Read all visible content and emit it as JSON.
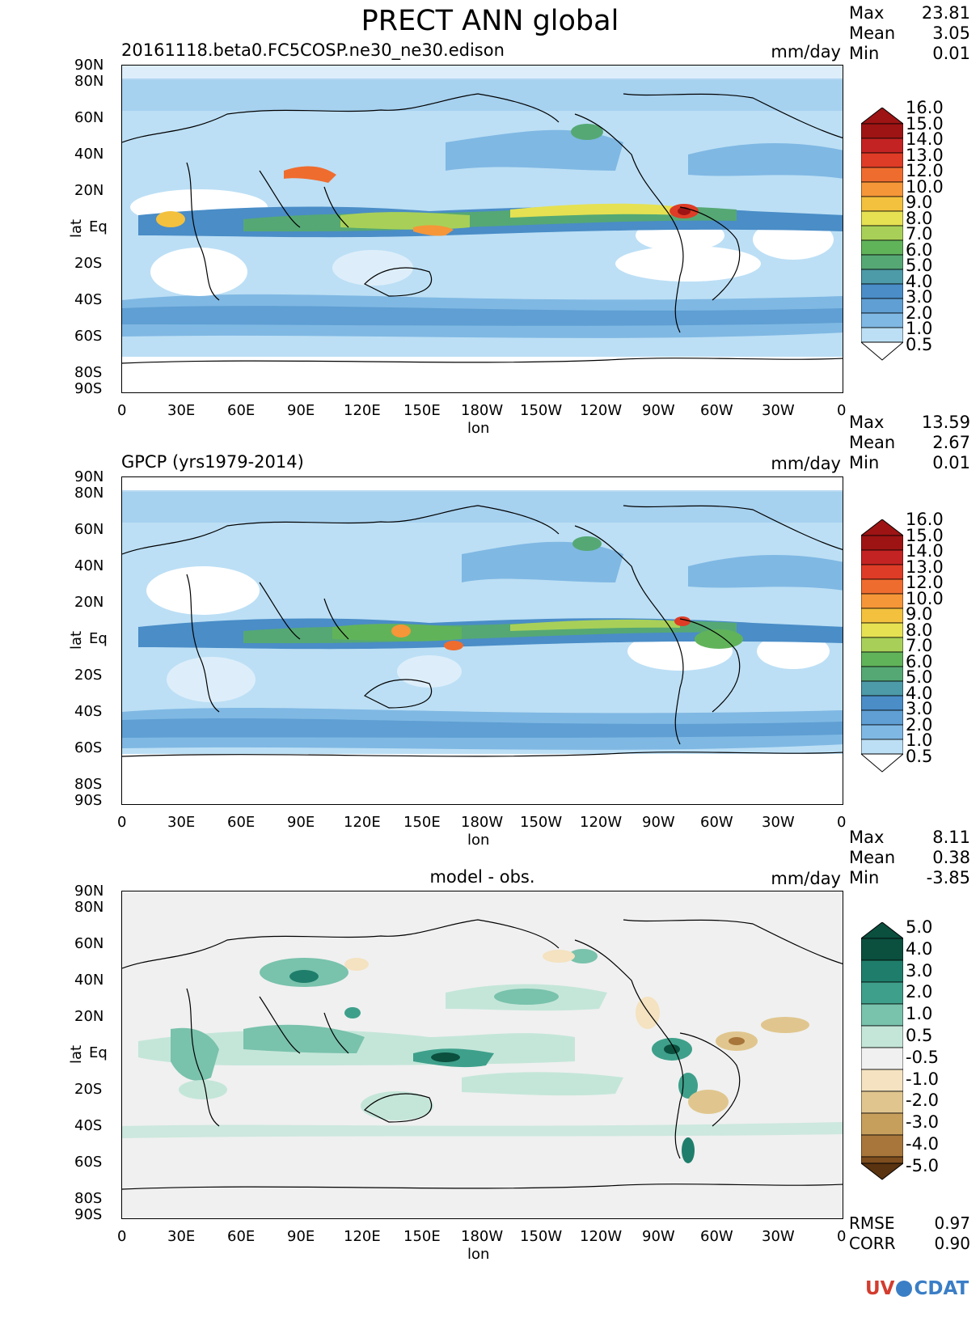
{
  "title": "PRECT ANN global",
  "panels": [
    {
      "subtitle_left": "20161118.beta0.FC5COSP.ne30_ne30.edison",
      "subtitle_right": "mm/day",
      "stats": {
        "Max": "23.81",
        "Mean": "3.05",
        "Min": "0.01"
      },
      "cbar_labels": [
        "16.0",
        "15.0",
        "14.0",
        "13.0",
        "12.0",
        "10.0",
        "9.0",
        "8.0",
        "7.0",
        "6.0",
        "5.0",
        "4.0",
        "3.0",
        "2.0",
        "1.0",
        "0.5"
      ]
    },
    {
      "subtitle_left": "GPCP (yrs1979-2014)",
      "subtitle_right": "mm/day",
      "stats": {
        "Max": "13.59",
        "Mean": "2.67",
        "Min": "0.01"
      },
      "cbar_labels": [
        "16.0",
        "15.0",
        "14.0",
        "13.0",
        "12.0",
        "10.0",
        "9.0",
        "8.0",
        "7.0",
        "6.0",
        "5.0",
        "4.0",
        "3.0",
        "2.0",
        "1.0",
        "0.5"
      ]
    },
    {
      "subtitle_center": "model - obs.",
      "subtitle_right": "mm/day",
      "stats": {
        "Max": "8.11",
        "Mean": "0.38",
        "Min": "-3.85"
      },
      "cbar_labels": [
        "5.0",
        "4.0",
        "3.0",
        "2.0",
        "1.0",
        "0.5",
        "-0.5",
        "-1.0",
        "-2.0",
        "-3.0",
        "-4.0",
        "-5.0"
      ]
    }
  ],
  "axes": {
    "lat_label": "lat",
    "lon_label": "lon",
    "lat_ticks": [
      "90N",
      "80N",
      "60N",
      "40N",
      "20N",
      "Eq",
      "20S",
      "40S",
      "60S",
      "80S",
      "90S"
    ],
    "lon_ticks": [
      "0",
      "30E",
      "60E",
      "90E",
      "120E",
      "150E",
      "180W",
      "150W",
      "120W",
      "90W",
      "60W",
      "30W",
      "0"
    ]
  },
  "footer": {
    "rmse_label": "RMSE",
    "rmse_value": "0.97",
    "corr_label": "CORR",
    "corr_value": "0.90"
  },
  "logo": "UV CDAT",
  "colors": {
    "abs_scale": [
      "#ffffff",
      "#ddeefa",
      "#bcdff5",
      "#9ccbed",
      "#7fb8e3",
      "#5f9fd3",
      "#4a8dc7",
      "#4d9aa8",
      "#55a874",
      "#61b35a",
      "#a8d058",
      "#e5e152",
      "#f3c13e",
      "#f59638",
      "#ef6c2f",
      "#de3c26",
      "#c42323",
      "#9e1414"
    ],
    "diff_scale": [
      "#0b4f3f",
      "#1e7e6b",
      "#3ea08b",
      "#79c2ac",
      "#c4e6d9",
      "#f0f0f0",
      "#f4e2c0",
      "#e0c68e",
      "#c79f5c",
      "#a8763a",
      "#7e4e1f",
      "#5a3310"
    ],
    "background": "#ffffff",
    "diff_background": "#f0f0f0"
  }
}
